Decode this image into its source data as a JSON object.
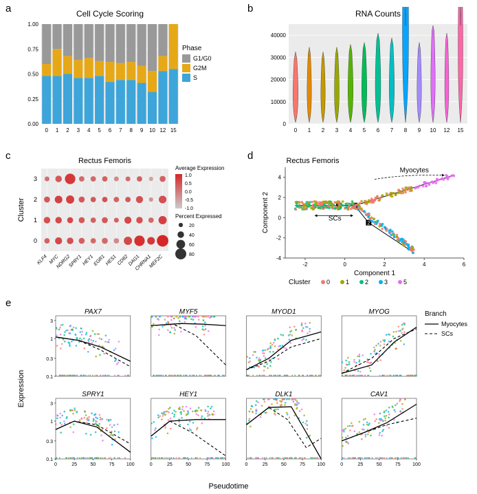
{
  "panelA": {
    "label": "a",
    "title": "Cell Cycle Scoring",
    "categories": [
      "0",
      "1",
      "2",
      "3",
      "4",
      "5",
      "6",
      "7",
      "8",
      "9",
      "10",
      "12",
      "15"
    ],
    "phases": [
      "G1/G0",
      "G2M",
      "S"
    ],
    "colors": {
      "G1/G0": "#999999",
      "G2M": "#E6A817",
      "S": "#3DA5D9"
    },
    "values": {
      "S": [
        0.48,
        0.48,
        0.5,
        0.46,
        0.46,
        0.48,
        0.42,
        0.44,
        0.44,
        0.41,
        0.32,
        0.53,
        0.55
      ],
      "G2M": [
        0.12,
        0.27,
        0.18,
        0.18,
        0.2,
        0.15,
        0.2,
        0.17,
        0.18,
        0.17,
        0.21,
        0.15,
        0.45
      ],
      "G1/G0": [
        0.4,
        0.25,
        0.32,
        0.36,
        0.34,
        0.37,
        0.38,
        0.39,
        0.38,
        0.42,
        0.47,
        0.32,
        0.0
      ]
    },
    "yticks": [
      0,
      0.25,
      0.5,
      0.75,
      1.0
    ],
    "ytick_labels": [
      "0.00",
      "0.25",
      "0.50",
      "0.75",
      "1.00"
    ]
  },
  "panelB": {
    "label": "b",
    "title": "RNA Counts",
    "categories": [
      "0",
      "1",
      "2",
      "3",
      "4",
      "5",
      "6",
      "7",
      "8",
      "9",
      "10",
      "12",
      "15"
    ],
    "colors": [
      "#F8766D",
      "#E38900",
      "#C49A00",
      "#99A800",
      "#53B400",
      "#00BC56",
      "#00C094",
      "#00BFC4",
      "#06A5FF",
      "#A58AFF",
      "#DF70F8",
      "#FB61D7",
      "#FF66A8"
    ],
    "yticks": [
      0,
      10000,
      20000,
      30000,
      40000
    ],
    "medians": [
      7000,
      7500,
      7000,
      7500,
      7800,
      8000,
      9000,
      8500,
      22000,
      8000,
      10000,
      9000,
      18000
    ],
    "widths": [
      0.7,
      0.6,
      0.6,
      0.65,
      0.7,
      0.7,
      0.75,
      0.7,
      0.85,
      0.6,
      0.6,
      0.55,
      0.65
    ]
  },
  "panelC": {
    "label": "c",
    "title": "Rectus Femoris",
    "ylabel": "Cluster",
    "clusters": [
      "0",
      "1",
      "2",
      "3"
    ],
    "genes": [
      "KLF4",
      "MYC",
      "NDRG2",
      "SPRY1",
      "HEY1",
      "EGR1",
      "HES1",
      "CD82",
      "DAG1",
      "CHRNA1",
      "MEF2C"
    ],
    "expr_range": [
      -1.0,
      1.0
    ],
    "expr_ticks": [
      1.0,
      0.5,
      0.0,
      -0.5,
      -1.0
    ],
    "size_ticks": [
      20,
      40,
      60,
      80
    ],
    "color_low": "#cccccc",
    "color_high": "#d62728",
    "dots": [
      [
        {
          "e": 0.3,
          "p": 30
        },
        {
          "e": 0.6,
          "p": 45
        },
        {
          "e": 0.5,
          "p": 40
        },
        {
          "e": 0.3,
          "p": 35
        },
        {
          "e": 0.2,
          "p": 30
        },
        {
          "e": 0.2,
          "p": 35
        },
        {
          "e": -0.2,
          "p": 30
        },
        {
          "e": 0.6,
          "p": 55
        },
        {
          "e": 0.9,
          "p": 75
        },
        {
          "e": 0.8,
          "p": 50
        },
        {
          "e": 1.0,
          "p": 85
        }
      ],
      [
        {
          "e": 0.5,
          "p": 40
        },
        {
          "e": 0.6,
          "p": 40
        },
        {
          "e": 0.6,
          "p": 35
        },
        {
          "e": 0.4,
          "p": 35
        },
        {
          "e": 0.3,
          "p": 30
        },
        {
          "e": 0.4,
          "p": 35
        },
        {
          "e": 0.3,
          "p": 25
        },
        {
          "e": 0.6,
          "p": 45
        },
        {
          "e": 0.5,
          "p": 40
        },
        {
          "e": 0.2,
          "p": 30
        },
        {
          "e": 0.7,
          "p": 55
        }
      ],
      [
        {
          "e": 0.4,
          "p": 35
        },
        {
          "e": 0.7,
          "p": 50
        },
        {
          "e": 0.7,
          "p": 55
        },
        {
          "e": 0.4,
          "p": 35
        },
        {
          "e": 0.4,
          "p": 30
        },
        {
          "e": 0.5,
          "p": 30
        },
        {
          "e": 0.3,
          "p": 30
        },
        {
          "e": 0.4,
          "p": 30
        },
        {
          "e": 0.5,
          "p": 45
        },
        {
          "e": -0.3,
          "p": 20
        },
        {
          "e": 0.5,
          "p": 50
        }
      ],
      [
        {
          "e": 0.1,
          "p": 25
        },
        {
          "e": 0.4,
          "p": 40
        },
        {
          "e": 0.8,
          "p": 75
        },
        {
          "e": 0.2,
          "p": 30
        },
        {
          "e": 0.2,
          "p": 30
        },
        {
          "e": 0.3,
          "p": 30
        },
        {
          "e": -0.2,
          "p": 25
        },
        {
          "e": 0.2,
          "p": 25
        },
        {
          "e": 0.3,
          "p": 30
        },
        {
          "e": -0.5,
          "p": 20
        },
        {
          "e": 0.3,
          "p": 35
        }
      ]
    ]
  },
  "panelD": {
    "label": "d",
    "title": "Rectus Femoris",
    "xlabel": "Component 1",
    "ylabel": "Component 2",
    "xlim": [
      -3,
      6
    ],
    "ylim": [
      -4,
      5
    ],
    "xticks": [
      -2,
      0,
      2,
      4,
      6
    ],
    "yticks": [
      -4,
      -2,
      0,
      2,
      4
    ],
    "cluster_colors": [
      "#F8766D",
      "#A3A500",
      "#00BF7D",
      "#00B0F6",
      "#E76BF3"
    ],
    "cluster_labels": [
      "0",
      "1",
      "2",
      "3",
      "5"
    ],
    "annotations": {
      "myocytes": "Myocytes",
      "scs": "SCs"
    }
  },
  "panelE": {
    "label": "e",
    "genes": [
      "PAX7",
      "MYF5",
      "MYOD1",
      "MYOG",
      "SPRY1",
      "HEY1",
      "DLK1",
      "CAV1"
    ],
    "xlabel": "Pseudotime",
    "ylabel": "Expression",
    "legend_title": "Branch",
    "branches": [
      "Myocytes",
      "SCs"
    ],
    "yticks": [
      0.1,
      0.3,
      1.0,
      3.0
    ],
    "xticks": [
      0,
      25,
      50,
      75,
      100
    ],
    "cluster_colors": [
      "#F8766D",
      "#A3A500",
      "#00BF7D",
      "#00B0F6",
      "#E76BF3"
    ]
  }
}
